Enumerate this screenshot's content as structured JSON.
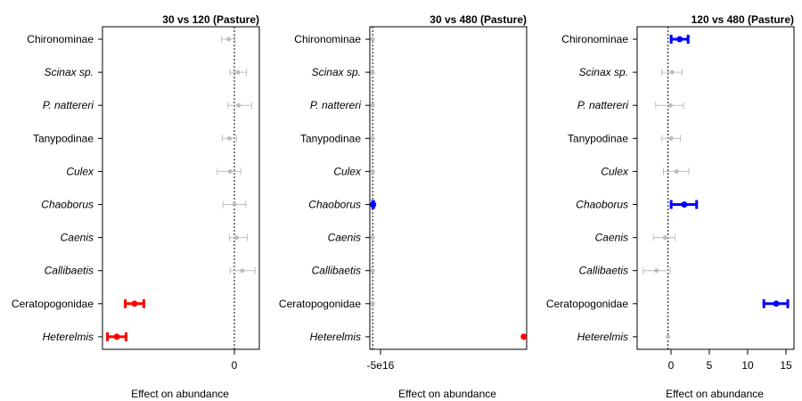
{
  "chart_data": [
    {
      "type": "forest",
      "title": "30 vs 120 (Pasture)",
      "xlabel": "Effect on abundance",
      "xticks": [
        "0"
      ],
      "xlim": [
        -18.5,
        3.5
      ],
      "reference_line": 0,
      "categories": [
        "Chironominae",
        "Scinax sp.",
        "P. nattereri",
        "Tanypodinae",
        "Culex",
        "Chaoborus",
        "Caenis",
        "Callibaetis",
        "Ceratopogonidae",
        "Heterelmis"
      ],
      "italic": [
        false,
        true,
        true,
        false,
        true,
        true,
        true,
        true,
        false,
        true
      ],
      "estimates": [
        -0.8,
        0.5,
        0.6,
        -0.7,
        -0.6,
        0.0,
        0.3,
        1.1,
        -14.0,
        -16.5
      ],
      "lower": [
        -1.8,
        -0.6,
        -0.9,
        -1.7,
        -2.4,
        -1.6,
        -0.7,
        -0.6,
        -15.3,
        -17.8
      ],
      "upper": [
        0.1,
        1.7,
        2.4,
        0.3,
        0.9,
        1.6,
        1.8,
        2.9,
        -12.7,
        -15.2
      ],
      "colors": [
        "#bebebe",
        "#bebebe",
        "#bebebe",
        "#bebebe",
        "#bebebe",
        "#bebebe",
        "#bebebe",
        "#bebebe",
        "#ff0000",
        "#ff0000"
      ]
    },
    {
      "type": "forest",
      "title": "30 vs 480 (Pasture)",
      "xlabel": "Effect on abundance",
      "xticks": [
        "-5e16"
      ],
      "xlim": [
        -2.0,
        107.0
      ],
      "reference_line": 0,
      "categories": [
        "Chironominae",
        "Scinax sp.",
        "P. nattereri",
        "Tanypodinae",
        "Culex",
        "Chaoborus",
        "Caenis",
        "Callibaetis",
        "Ceratopogonidae",
        "Heterelmis"
      ],
      "italic": [
        false,
        true,
        true,
        false,
        true,
        true,
        true,
        true,
        false,
        true
      ],
      "estimates": [
        0,
        0,
        0,
        0,
        0,
        0.3,
        0,
        0,
        0,
        105
      ],
      "lower": [
        0,
        0,
        0,
        0,
        0,
        0,
        0,
        0,
        0,
        105
      ],
      "upper": [
        0,
        0,
        0,
        0,
        0,
        0.6,
        0,
        0,
        0,
        105
      ],
      "colors": [
        "#bebebe",
        "#bebebe",
        "#bebebe",
        "#bebebe",
        "#bebebe",
        "#0000ff",
        "#bebebe",
        "#bebebe",
        "#bebebe",
        "#ff0000"
      ]
    },
    {
      "type": "forest",
      "title": "120 vs 480 (Pasture)",
      "xlabel": "Effect on abundance",
      "xticks": [
        "0",
        "5",
        "10",
        "15"
      ],
      "xlim": [
        -4.0,
        16.3
      ],
      "reference_line": 0,
      "categories": [
        "Chironominae",
        "Scinax sp.",
        "P. nattereri",
        "Tanypodinae",
        "Culex",
        "Chaoborus",
        "Caenis",
        "Callibaetis",
        "Ceratopogonidae",
        "Heterelmis"
      ],
      "italic": [
        false,
        true,
        true,
        false,
        true,
        true,
        true,
        true,
        false,
        true
      ],
      "estimates": [
        1.5,
        0.5,
        0.3,
        0.4,
        1.1,
        2.1,
        -0.4,
        -1.5,
        14.0,
        0.0
      ],
      "lower": [
        0.4,
        -0.8,
        -1.6,
        -0.8,
        -0.6,
        0.4,
        -1.9,
        -3.2,
        12.4,
        0.0
      ],
      "upper": [
        2.6,
        1.8,
        2.0,
        1.6,
        2.7,
        3.7,
        0.9,
        0.3,
        15.5,
        0.0
      ],
      "colors": [
        "#0000ff",
        "#bebebe",
        "#bebebe",
        "#bebebe",
        "#bebebe",
        "#0000ff",
        "#bebebe",
        "#bebebe",
        "#0000ff",
        "#bebebe"
      ]
    }
  ]
}
